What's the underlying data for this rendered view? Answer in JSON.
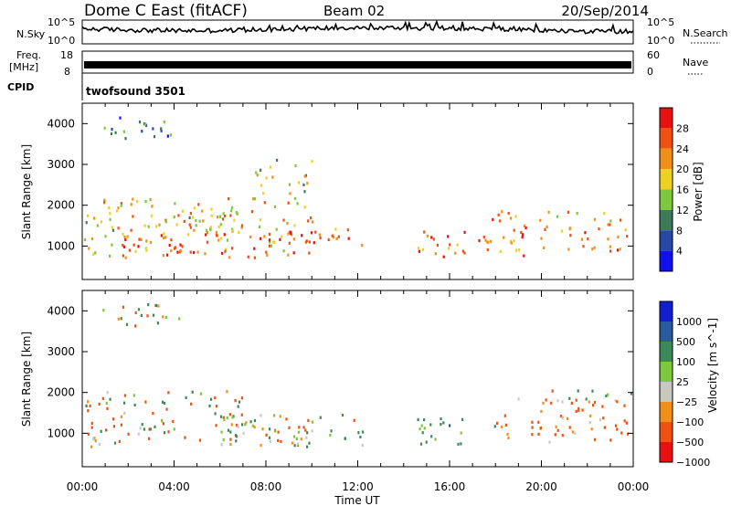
{
  "header": {
    "radar": "Dome C East (fitACF)",
    "beam": "Beam 02",
    "date": "20/Sep/2014"
  },
  "noise_panel": {
    "left_label": "N.Sky",
    "left_ticks": [
      "10^5",
      "10^0"
    ],
    "right_label": "N.Search",
    "right_ticks": [
      "10^5",
      "10^0"
    ]
  },
  "freq_panel": {
    "left_label_1": "Freq.",
    "left_label_2": "[MHz]",
    "left_ticks": [
      "18",
      "8"
    ],
    "right_label": "Nave",
    "right_ticks": [
      "60",
      "0"
    ],
    "cpid_label": "CPID",
    "program": "twofsound 3501"
  },
  "x_axis": {
    "label": "Time UT",
    "ticks": [
      "00:00",
      "04:00",
      "08:00",
      "12:00",
      "16:00",
      "20:00",
      "00:00"
    ]
  },
  "colors": {
    "power": [
      "#1010ee",
      "#2848a8",
      "#3c7a5a",
      "#7ec83c",
      "#f0d020",
      "#f09018",
      "#f05010",
      "#e81010"
    ],
    "velocity": [
      "#e81010",
      "#f05010",
      "#f09018",
      "#c8c8c0",
      "#7ec83c",
      "#3c8a5a",
      "#2a5aa0",
      "#1020d0"
    ]
  },
  "chart_data": [
    {
      "type": "heatmap",
      "title": "",
      "xlabel": "",
      "ylabel": "Slant Range [km]",
      "yticks": [
        "1000",
        "2000",
        "3000",
        "4000"
      ],
      "ylim": [
        180,
        4500
      ],
      "xlim": [
        0,
        24
      ],
      "colorbar": {
        "label": "Power [dB]",
        "ticks": [
          "4",
          "8",
          "12",
          "16",
          "20",
          "24",
          "28"
        ],
        "range": [
          0,
          32
        ]
      },
      "echo_regions": [
        {
          "t0": 0.0,
          "t1": 10.0,
          "r0": 700,
          "r1": 2200,
          "level": 20
        },
        {
          "t0": 1.5,
          "t1": 10.0,
          "r0": 800,
          "r1": 1400,
          "level": 27
        },
        {
          "t0": 0.0,
          "t1": 6.5,
          "r0": 1400,
          "r1": 1800,
          "level": 18
        },
        {
          "t0": 10.0,
          "t1": 12.3,
          "r0": 800,
          "r1": 1500,
          "level": 24
        },
        {
          "t0": 14.5,
          "t1": 19.2,
          "r0": 700,
          "r1": 1400,
          "level": 24
        },
        {
          "t0": 17.5,
          "t1": 24.0,
          "r0": 900,
          "r1": 1900,
          "level": 22
        },
        {
          "t0": 0.8,
          "t1": 4.5,
          "r0": 3600,
          "r1": 4200,
          "level": 9
        },
        {
          "t0": 7.5,
          "t1": 10.0,
          "r0": 2300,
          "r1": 3200,
          "level": 16
        }
      ]
    },
    {
      "type": "heatmap",
      "title": "",
      "xlabel": "Time UT",
      "ylabel": "Slant Range [km]",
      "yticks": [
        "1000",
        "2000",
        "3000",
        "4000"
      ],
      "ylim": [
        180,
        4500
      ],
      "xlim": [
        0,
        24
      ],
      "colorbar": {
        "label": "Velocity [m s^-1]",
        "ticks": [
          "1000",
          "500",
          "100",
          "25",
          "−25",
          "−100",
          "−500",
          "−1000"
        ]
      },
      "echo_regions": [
        {
          "t0": 0.0,
          "t1": 7.0,
          "r0": 1500,
          "r1": 2100,
          "value": 0
        },
        {
          "t0": 0.0,
          "t1": 10.0,
          "r0": 700,
          "r1": 1500,
          "value": -100
        },
        {
          "t0": 6.0,
          "t1": 12.3,
          "r0": 700,
          "r1": 1500,
          "value": 100
        },
        {
          "t0": 14.5,
          "t1": 18.0,
          "r0": 700,
          "r1": 1400,
          "value": 300
        },
        {
          "t0": 18.0,
          "t1": 24.0,
          "r0": 800,
          "r1": 1900,
          "value": -200
        },
        {
          "t0": 20.0,
          "t1": 24.0,
          "r0": 1700,
          "r1": 2100,
          "value": 0
        },
        {
          "t0": 0.8,
          "t1": 4.5,
          "r0": 3600,
          "r1": 4200,
          "value": 0
        }
      ]
    }
  ]
}
